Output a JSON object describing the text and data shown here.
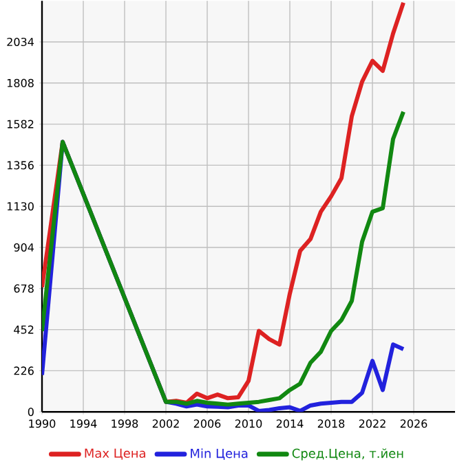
{
  "chart_data": {
    "type": "line",
    "x": [
      1990,
      1992,
      2002,
      2003,
      2004,
      2005,
      2006,
      2007,
      2008,
      2009,
      2010,
      2011,
      2012,
      2013,
      2014,
      2015,
      2016,
      2017,
      2018,
      2019,
      2020,
      2021,
      2022,
      2023,
      2024,
      2025
    ],
    "series": [
      {
        "name": "Max Цена",
        "color": "#dd2222",
        "values": [
          685,
          1484,
          55,
          60,
          50,
          100,
          75,
          95,
          75,
          80,
          170,
          445,
          400,
          370,
          650,
          885,
          950,
          1100,
          1185,
          1285,
          1625,
          1815,
          1930,
          1875,
          2080,
          2250
        ]
      },
      {
        "name": "Min Цена",
        "color": "#2222dd",
        "values": [
          203,
          1484,
          55,
          45,
          30,
          40,
          30,
          28,
          25,
          35,
          35,
          5,
          10,
          20,
          25,
          5,
          35,
          45,
          50,
          55,
          55,
          105,
          280,
          120,
          370,
          345
        ]
      },
      {
        "name": "Сред.Цена, т.йен",
        "color": "#118811",
        "values": [
          444,
          1484,
          55,
          55,
          45,
          60,
          50,
          45,
          40,
          45,
          50,
          55,
          65,
          75,
          120,
          155,
          270,
          330,
          445,
          505,
          610,
          935,
          1100,
          1120,
          1500,
          1650
        ]
      }
    ],
    "xlim": [
      1990,
      2030
    ],
    "ylim": [
      0,
      2260
    ],
    "xticks": [
      1990,
      1994,
      1998,
      2002,
      2006,
      2010,
      2014,
      2018,
      2022,
      2026
    ],
    "yticks": [
      0,
      226,
      452,
      678,
      904,
      1130,
      1356,
      1582,
      1808,
      2034
    ],
    "grid": true,
    "legend": "bottom",
    "marker": "none",
    "line_style": "solid"
  }
}
